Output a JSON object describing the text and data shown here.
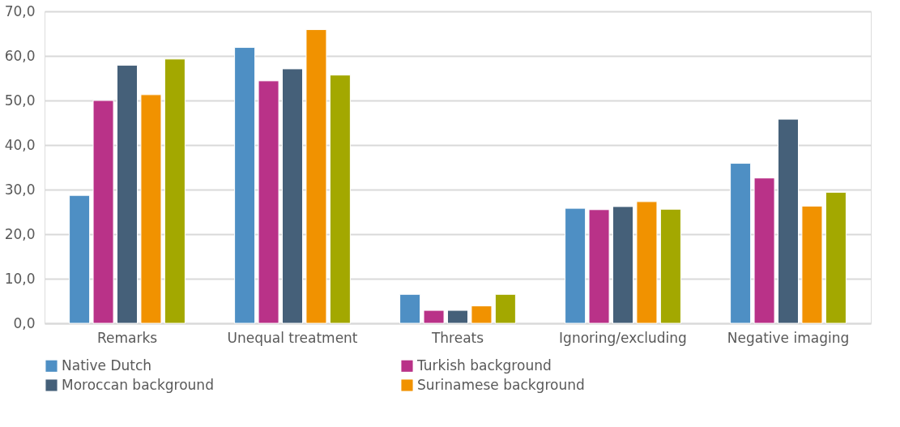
{
  "chart_data": {
    "type": "bar",
    "categories": [
      "Remarks",
      "Unequal treatment",
      "Threats",
      "Ignoring/excluding",
      "Negative imaging"
    ],
    "series": [
      {
        "name": "Native Dutch",
        "color": "#4e8fc4",
        "values": [
          28.7,
          61.9,
          6.5,
          25.8,
          35.9
        ]
      },
      {
        "name": "Turkish background",
        "color": "#b93288",
        "values": [
          50.0,
          54.4,
          2.9,
          25.5,
          32.6
        ]
      },
      {
        "name": "Moroccan background",
        "color": "#456079",
        "values": [
          57.9,
          57.1,
          2.9,
          26.2,
          45.8
        ]
      },
      {
        "name": "Surinamese background",
        "color": "#f19200",
        "values": [
          51.3,
          65.9,
          3.9,
          27.3,
          26.3
        ]
      },
      {
        "color": "#a3a800",
        "values": [
          59.3,
          55.7,
          6.5,
          25.6,
          29.4
        ]
      }
    ],
    "ylim": [
      0,
      70
    ],
    "yticks": [
      {
        "value": 0,
        "label": "0,0"
      },
      {
        "value": 10,
        "label": "10,0"
      },
      {
        "value": 20,
        "label": "20,0"
      },
      {
        "value": 30,
        "label": "30,0"
      },
      {
        "value": 40,
        "label": "40,0"
      },
      {
        "value": 50,
        "label": "50,0"
      },
      {
        "value": 60,
        "label": "60,0"
      },
      {
        "value": 70,
        "label": "70,0"
      }
    ],
    "grid": "y",
    "legend": "bottom"
  }
}
